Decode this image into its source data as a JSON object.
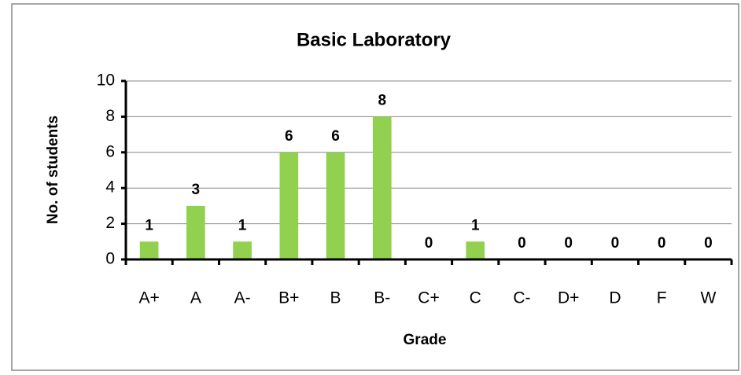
{
  "chart_data": {
    "type": "bar",
    "title": "Basic Laboratory",
    "x_label": "Grade",
    "y_label": "No. of students",
    "categories": [
      "A+",
      "A",
      "A-",
      "B+",
      "B",
      "B-",
      "C+",
      "C",
      "C-",
      "D+",
      "D",
      "F",
      "W"
    ],
    "values": [
      1,
      3,
      1,
      6,
      6,
      8,
      0,
      1,
      0,
      0,
      0,
      0,
      0
    ],
    "color": "#92d050",
    "ylim": [
      0,
      10
    ],
    "yticks": [
      0,
      2,
      4,
      6,
      8,
      10
    ],
    "grid": true,
    "data_labels": true
  }
}
